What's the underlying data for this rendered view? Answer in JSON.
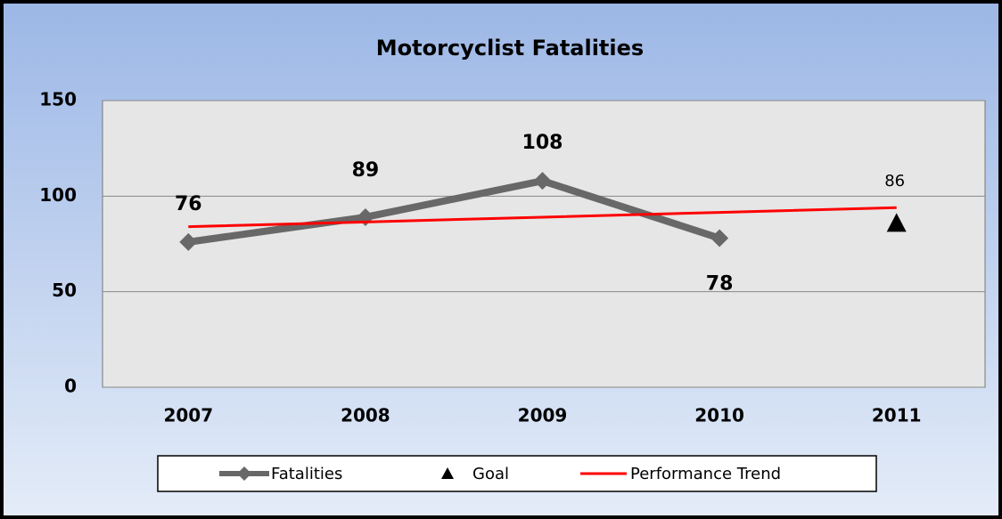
{
  "chart_data": {
    "type": "line",
    "title": "Motorcyclist Fatalities",
    "categories": [
      "2007",
      "2008",
      "2009",
      "2010",
      "2011"
    ],
    "series": [
      {
        "name": "Fatalities",
        "color": "#686868",
        "marker": "diamond",
        "values": [
          76,
          89,
          108,
          78,
          null
        ]
      },
      {
        "name": "Goal",
        "color": "#000000",
        "marker": "triangle",
        "values": [
          null,
          null,
          null,
          null,
          86
        ]
      },
      {
        "name": "Performance Trend",
        "color": "#ff0000",
        "marker": "none",
        "values": [
          84,
          86.5,
          89,
          91.5,
          94
        ]
      }
    ],
    "ylim": [
      0,
      150
    ],
    "yticks": [
      0,
      50,
      100,
      150
    ],
    "grid": true,
    "legend": "bottom"
  }
}
